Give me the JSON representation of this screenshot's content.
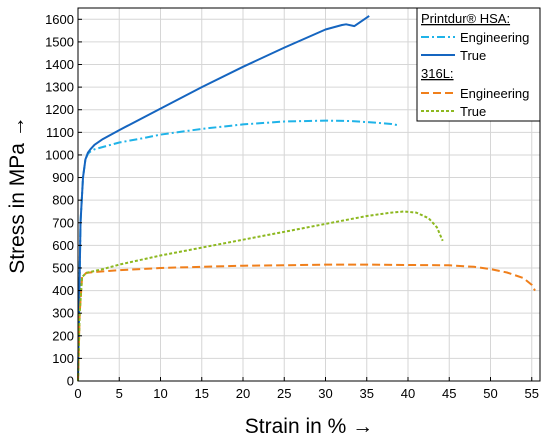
{
  "chart_data": {
    "type": "line",
    "xlabel": "Strain in % →",
    "ylabel": "Stress in MPa →",
    "xlim": [
      0,
      56
    ],
    "ylim": [
      0,
      1650
    ],
    "x_ticks": [
      0,
      5,
      10,
      15,
      20,
      25,
      30,
      35,
      40,
      45,
      50,
      55
    ],
    "y_ticks": [
      0,
      100,
      200,
      300,
      400,
      500,
      600,
      700,
      800,
      900,
      1000,
      1100,
      1200,
      1300,
      1400,
      1500,
      1600
    ],
    "grid": true,
    "legend_position": "top-right",
    "legend_groups": [
      {
        "heading": "Printdur® HSA:",
        "entries": [
          0,
          1
        ]
      },
      {
        "heading": "316L:",
        "entries": [
          2,
          3
        ]
      }
    ],
    "series": [
      {
        "name": "Engineering",
        "group": "Printdur® HSA",
        "color": "#1fb3e8",
        "dash": "dashdot",
        "x": [
          0,
          0.3,
          0.6,
          0.9,
          1.2,
          1.5,
          2,
          3,
          5,
          8,
          10,
          15,
          20,
          25,
          30,
          33,
          36,
          38,
          39
        ],
        "y": [
          0,
          700,
          900,
          980,
          1005,
          1015,
          1025,
          1035,
          1055,
          1075,
          1090,
          1115,
          1135,
          1148,
          1152,
          1150,
          1143,
          1137,
          1130
        ]
      },
      {
        "name": "True",
        "group": "Printdur® HSA",
        "color": "#1565c0",
        "dash": "solid",
        "x": [
          0,
          0.3,
          0.6,
          0.9,
          1.2,
          1.5,
          2,
          3,
          5,
          10,
          15,
          20,
          25,
          30,
          32,
          32.5,
          33.5,
          35.3
        ],
        "y": [
          0,
          700,
          900,
          980,
          1010,
          1025,
          1045,
          1070,
          1110,
          1205,
          1300,
          1390,
          1475,
          1555,
          1575,
          1578,
          1570,
          1615
        ]
      },
      {
        "name": "Engineering",
        "group": "316L",
        "color": "#f07f1b",
        "dash": "dashed",
        "x": [
          0,
          0.2,
          0.5,
          1,
          2,
          5,
          10,
          15,
          20,
          25,
          30,
          35,
          40,
          45,
          48,
          50,
          52,
          54,
          55,
          55.4
        ],
        "y": [
          0,
          300,
          460,
          478,
          482,
          490,
          500,
          505,
          510,
          512,
          515,
          515,
          513,
          512,
          505,
          495,
          480,
          455,
          425,
          400
        ]
      },
      {
        "name": "True",
        "group": "316L",
        "color": "#8db820",
        "dash": "dotted",
        "x": [
          0,
          0.2,
          0.5,
          1,
          3,
          5,
          10,
          15,
          20,
          25,
          30,
          35,
          38,
          39.5,
          41,
          42.5,
          43.5,
          44.2
        ],
        "y": [
          0,
          300,
          460,
          478,
          495,
          515,
          555,
          590,
          625,
          660,
          695,
          730,
          745,
          750,
          745,
          720,
          680,
          620
        ]
      }
    ]
  }
}
